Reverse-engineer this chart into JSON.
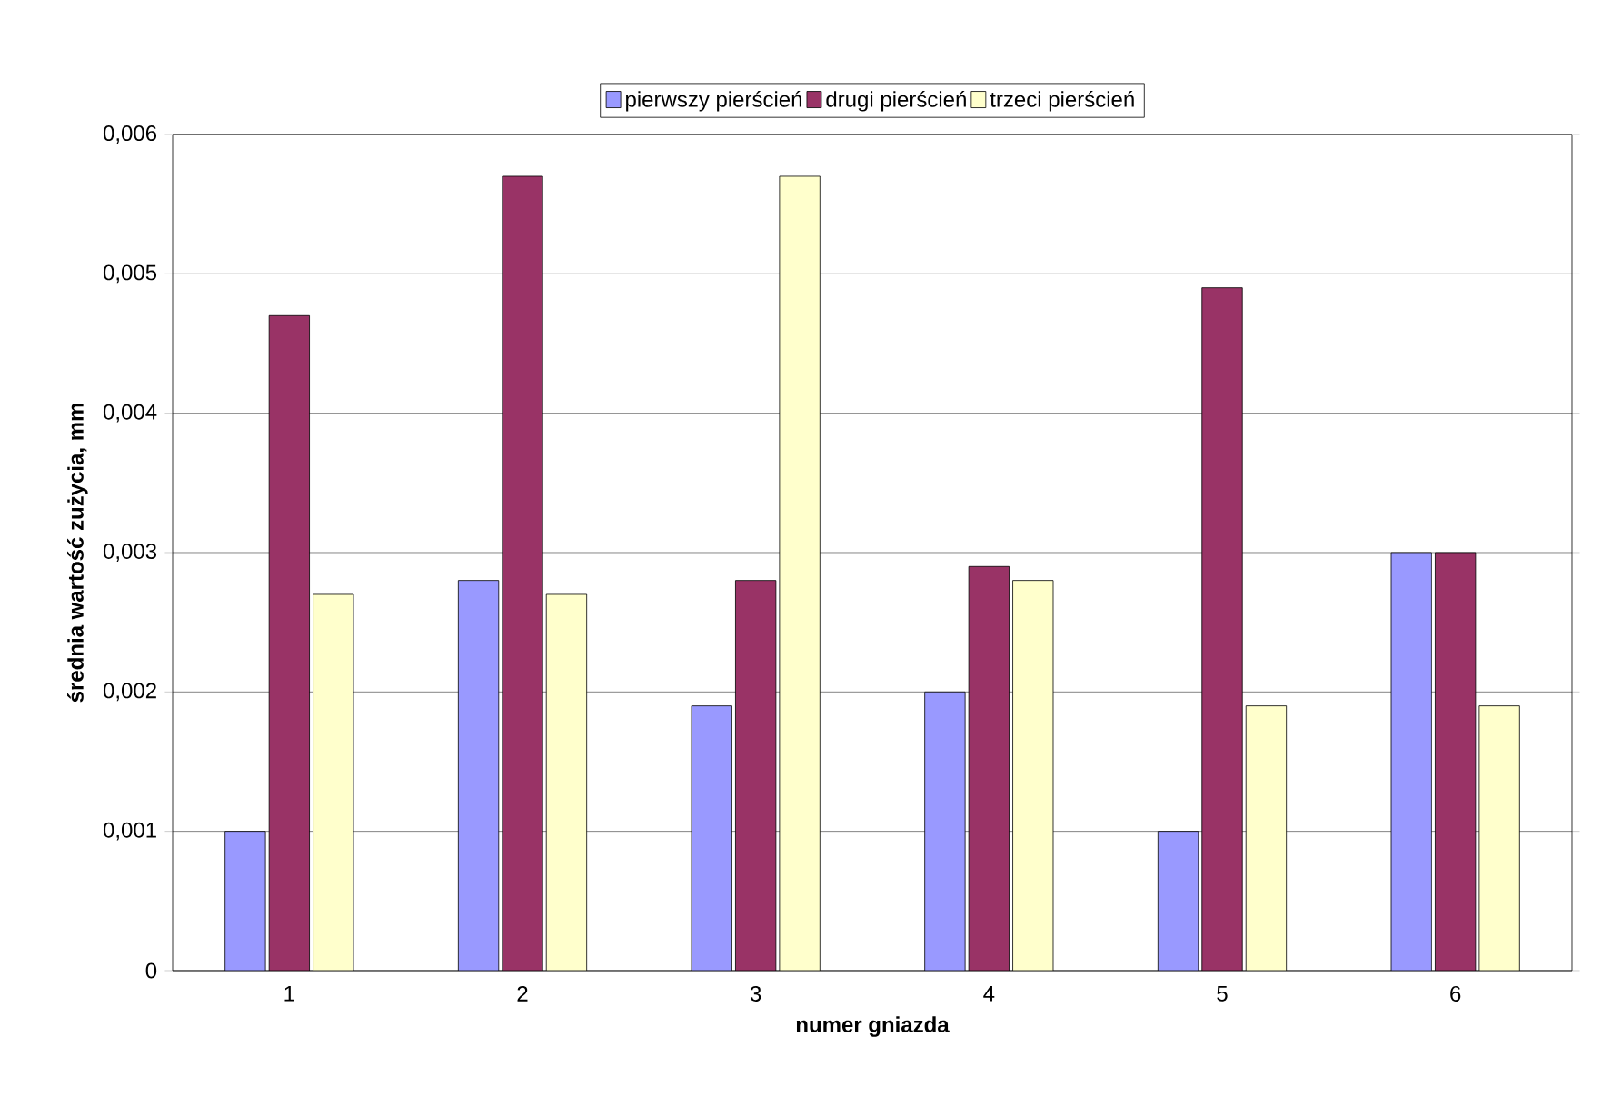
{
  "chart_data": {
    "type": "bar",
    "xlabel": "numer gniazda",
    "ylabel": "średnia wartość zużycia, mm",
    "categories": [
      "1",
      "2",
      "3",
      "4",
      "5",
      "6"
    ],
    "series": [
      {
        "name": "pierwszy pierścień",
        "color": "#9999ff",
        "values": [
          0.001,
          0.0028,
          0.0019,
          0.002,
          0.001,
          0.003
        ]
      },
      {
        "name": "drugi pierścień",
        "color": "#993366",
        "values": [
          0.0047,
          0.0057,
          0.0028,
          0.0029,
          0.0049,
          0.003
        ]
      },
      {
        "name": "trzeci pierścień",
        "color": "#ffffcc",
        "values": [
          0.0027,
          0.0027,
          0.0057,
          0.0028,
          0.0019,
          0.0019
        ]
      }
    ],
    "ylim": [
      0,
      0.006
    ],
    "yticks": [
      0,
      {
        "value": 0.001,
        "label": "0,001"
      },
      {
        "value": 0.002,
        "label": "0,002"
      },
      {
        "value": 0.003,
        "label": "0,003"
      },
      {
        "value": 0.004,
        "label": "0,004"
      },
      {
        "value": 0.005,
        "label": "0,005"
      },
      {
        "value": 0.006,
        "label": "0,006"
      }
    ],
    "grid": "y",
    "legend": "top"
  }
}
